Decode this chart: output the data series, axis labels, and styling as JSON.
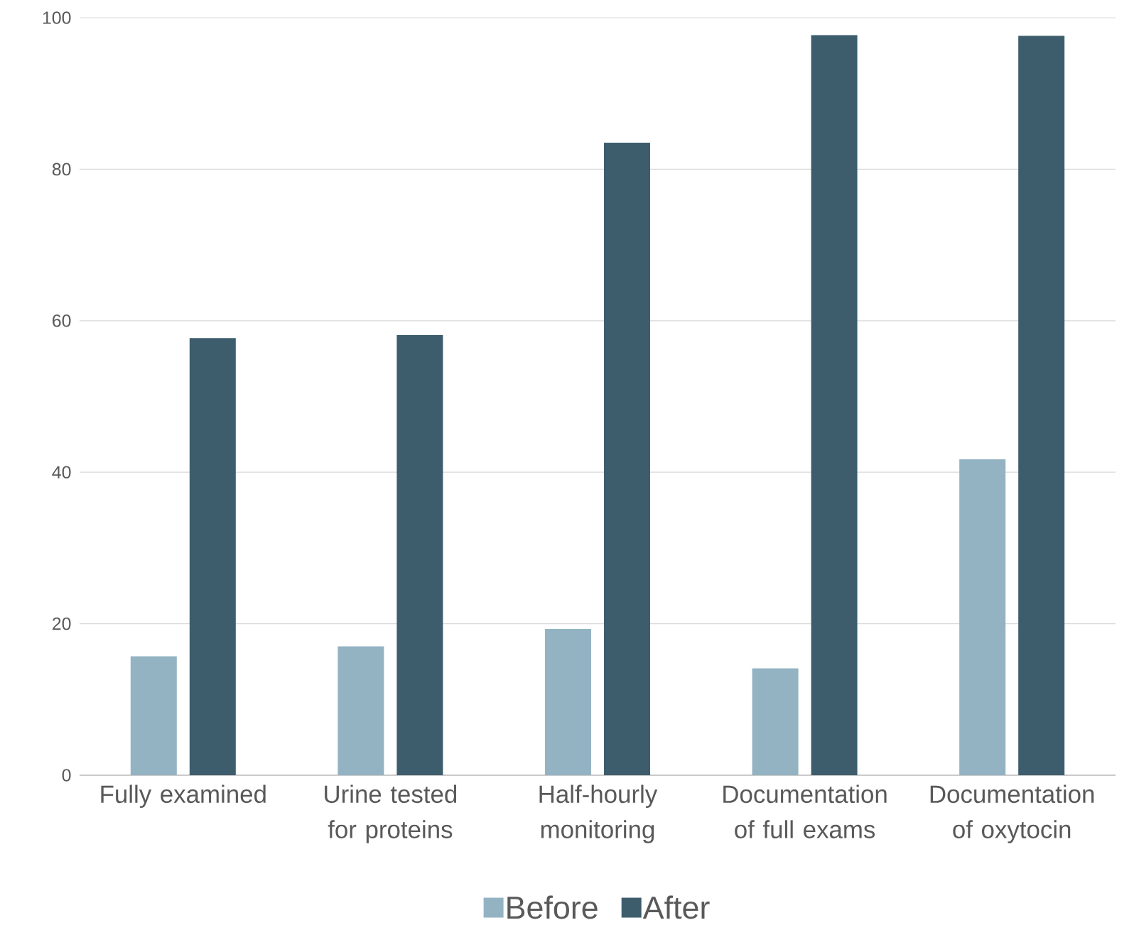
{
  "chart_data": {
    "type": "bar",
    "categories": [
      "Fully examined",
      "Urine tested for proteins",
      "Half-hourly monitoring",
      "Documentation of full exams",
      "Documentation of oxytocin"
    ],
    "series": [
      {
        "name": "Before",
        "color": "#93b3c3",
        "values": [
          15.7,
          17.0,
          19.3,
          14.1,
          41.7
        ]
      },
      {
        "name": "After",
        "color": "#3d5d6d",
        "values": [
          57.7,
          58.1,
          83.5,
          97.7,
          97.6
        ]
      }
    ],
    "ylim": [
      0,
      100
    ],
    "yticks": [
      0,
      20,
      40,
      60,
      80,
      100
    ],
    "grid": "y",
    "legend": "bottom"
  }
}
